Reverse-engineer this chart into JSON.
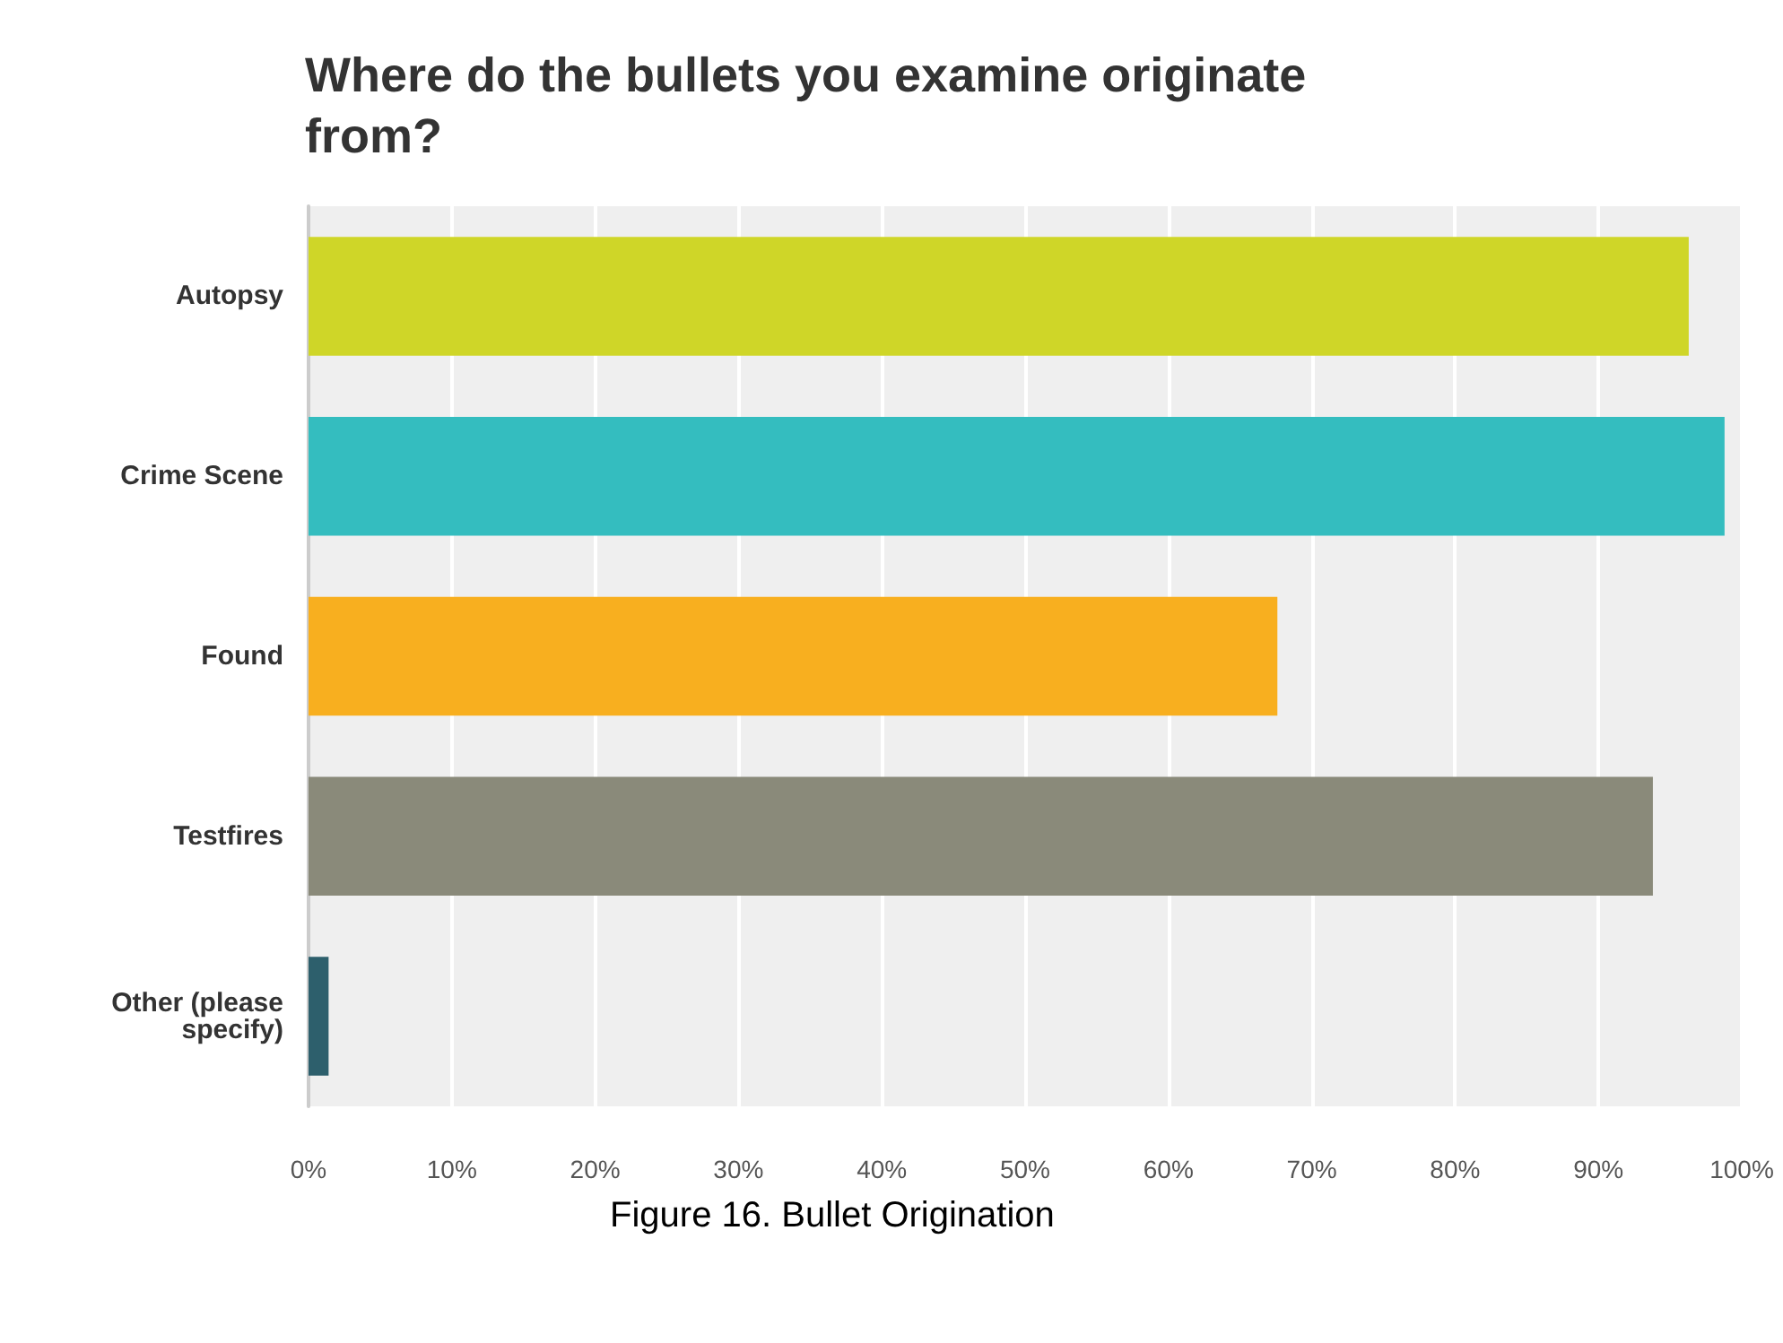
{
  "chart_data": {
    "type": "bar",
    "orientation": "horizontal",
    "title": "Where do the bullets you examine originate from?",
    "categories": [
      "Autopsy",
      "Crime Scene",
      "Found",
      "Testfires",
      "Other (please\nspecify)"
    ],
    "values": [
      96.3,
      98.8,
      67.6,
      93.8,
      1.4
    ],
    "colors": [
      "#cfd628",
      "#34bdbf",
      "#f8af1f",
      "#8a8a7a",
      "#2d5f6c"
    ],
    "xlim": [
      0,
      100
    ],
    "xticks": [
      {
        "value": 0,
        "label": "0%"
      },
      {
        "value": 10,
        "label": "10%"
      },
      {
        "value": 20,
        "label": "20%"
      },
      {
        "value": 30,
        "label": "30%"
      },
      {
        "value": 40,
        "label": "40%"
      },
      {
        "value": 50,
        "label": "50%"
      },
      {
        "value": 60,
        "label": "60%"
      },
      {
        "value": 70,
        "label": "70%"
      },
      {
        "value": 80,
        "label": "80%"
      },
      {
        "value": 90,
        "label": "90%"
      },
      {
        "value": 100,
        "label": "100%"
      }
    ],
    "grid": "x",
    "annotations": [
      "Figure 16. Bullet Origination"
    ]
  }
}
